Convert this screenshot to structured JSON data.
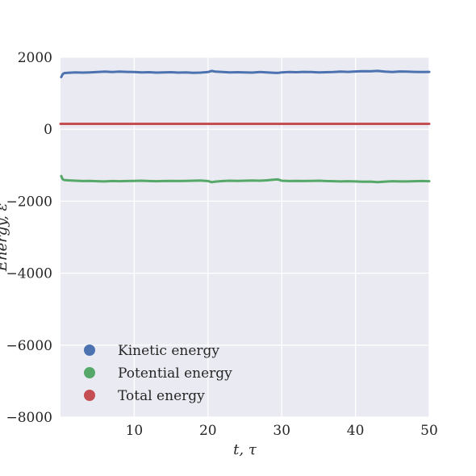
{
  "chart_data": {
    "type": "line",
    "title": "",
    "xlabel": "t, τ",
    "ylabel": "Energy, ε",
    "xlim": [
      0,
      50
    ],
    "ylim": [
      -8000,
      2000
    ],
    "xticks": [
      10,
      20,
      30,
      40,
      50
    ],
    "xtick_labels": [
      "10",
      "20",
      "30",
      "40",
      "50"
    ],
    "yticks": [
      2000,
      0,
      -2000,
      -4000,
      -6000,
      -8000
    ],
    "ytick_labels": [
      "2000",
      "0",
      "−2000",
      "−4000",
      "−6000",
      "−8000"
    ],
    "grid": true,
    "background": "#eaeaf2",
    "legend_position": "lower-left",
    "series": [
      {
        "name": "Kinetic energy",
        "color": "#4c72b0",
        "x": [
          0.1,
          0.3,
          0.5,
          1,
          2,
          3,
          4,
          5,
          6,
          7,
          8,
          9,
          10,
          11,
          12,
          13,
          14,
          15,
          16,
          17,
          18,
          19,
          20,
          20.5,
          21,
          22,
          23,
          24,
          25,
          26,
          27,
          28,
          29,
          29.5,
          30,
          31,
          32,
          33,
          34,
          35,
          36,
          37,
          38,
          39,
          40,
          41,
          42,
          43,
          44,
          45,
          46,
          47,
          48,
          49,
          50
        ],
        "y": [
          1450,
          1530,
          1560,
          1570,
          1580,
          1575,
          1580,
          1590,
          1600,
          1590,
          1600,
          1595,
          1590,
          1580,
          1585,
          1575,
          1580,
          1585,
          1575,
          1580,
          1570,
          1575,
          1590,
          1620,
          1600,
          1590,
          1580,
          1585,
          1580,
          1575,
          1590,
          1580,
          1570,
          1565,
          1580,
          1590,
          1585,
          1595,
          1590,
          1580,
          1585,
          1590,
          1600,
          1595,
          1605,
          1615,
          1610,
          1620,
          1600,
          1590,
          1605,
          1600,
          1595,
          1590,
          1595
        ]
      },
      {
        "name": "Potential energy",
        "color": "#55a868",
        "x": [
          0.1,
          0.3,
          0.5,
          1,
          2,
          3,
          4,
          5,
          6,
          7,
          8,
          9,
          10,
          11,
          12,
          13,
          14,
          15,
          16,
          17,
          18,
          19,
          20,
          20.5,
          21,
          22,
          23,
          24,
          25,
          26,
          27,
          28,
          29,
          29.5,
          30,
          31,
          32,
          33,
          34,
          35,
          36,
          37,
          38,
          39,
          40,
          41,
          42,
          43,
          44,
          45,
          46,
          47,
          48,
          49,
          50
        ],
        "y": [
          -1300,
          -1390,
          -1410,
          -1420,
          -1430,
          -1440,
          -1435,
          -1445,
          -1450,
          -1440,
          -1445,
          -1440,
          -1435,
          -1430,
          -1440,
          -1445,
          -1440,
          -1435,
          -1440,
          -1435,
          -1430,
          -1425,
          -1440,
          -1470,
          -1455,
          -1440,
          -1430,
          -1435,
          -1430,
          -1425,
          -1430,
          -1420,
          -1400,
          -1395,
          -1430,
          -1440,
          -1435,
          -1440,
          -1435,
          -1430,
          -1440,
          -1445,
          -1450,
          -1445,
          -1450,
          -1460,
          -1455,
          -1470,
          -1455,
          -1445,
          -1450,
          -1450,
          -1445,
          -1440,
          -1445
        ]
      },
      {
        "name": "Total energy",
        "color": "#c44e52",
        "x": [
          0,
          50
        ],
        "y": [
          150,
          150
        ]
      }
    ]
  }
}
